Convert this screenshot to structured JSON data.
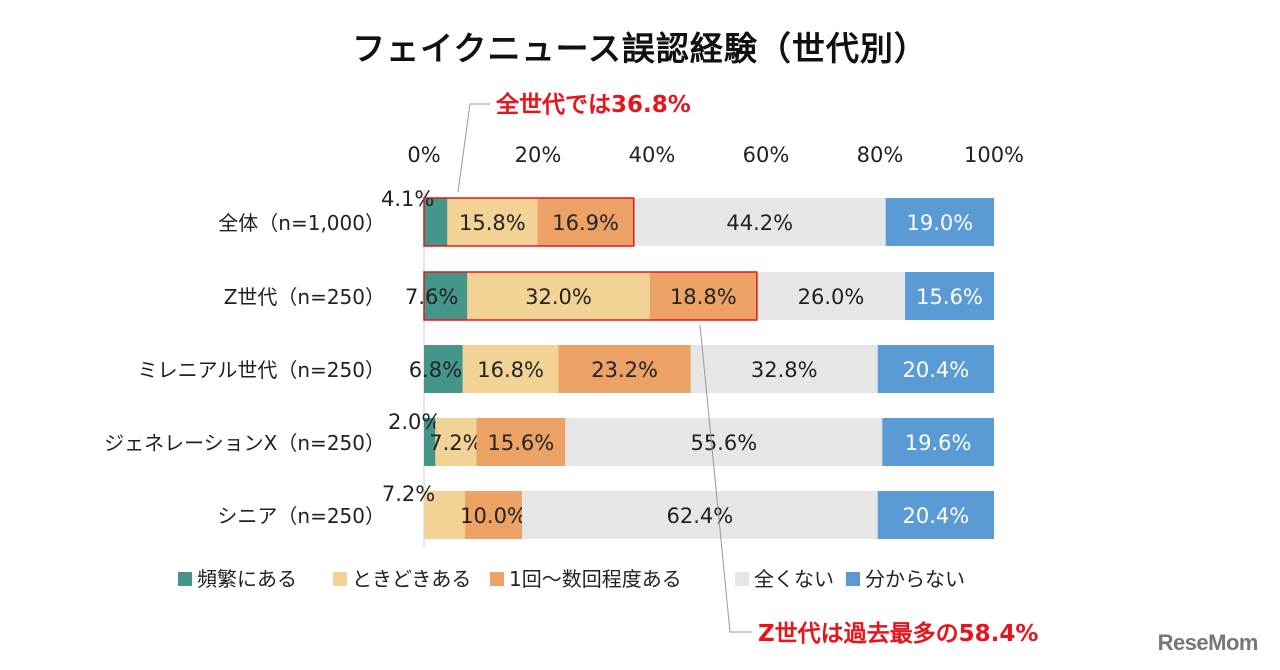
{
  "chart_data": {
    "type": "bar",
    "orientation": "horizontal",
    "stacked": true,
    "title": "フェイクニュース誤認経験（世代別）",
    "categories": [
      "全体（n=1,000）",
      "Z世代（n=250）",
      "ミレニアル世代（n=250）",
      "ジェネレーションX（n=250）",
      "シニア（n=250）"
    ],
    "series": [
      {
        "name": "頻繁にある",
        "color": "#45968a",
        "values": [
          4.1,
          7.6,
          6.8,
          2.0,
          0
        ]
      },
      {
        "name": "ときどきある",
        "color": "#f3d296",
        "values": [
          15.8,
          32.0,
          16.8,
          7.2,
          7.2
        ]
      },
      {
        "name": "1回～数回程度ある",
        "color": "#eba264",
        "values": [
          16.9,
          18.8,
          23.2,
          15.6,
          10.0
        ]
      },
      {
        "name": "全くない",
        "color": "#e6e6e6",
        "values": [
          44.2,
          26.0,
          32.8,
          55.6,
          62.4
        ]
      },
      {
        "name": "分からない",
        "color": "#5b9bd5",
        "values": [
          19.0,
          15.6,
          20.4,
          19.6,
          20.4
        ]
      }
    ],
    "xticks": [
      "0%",
      "20%",
      "40%",
      "60%",
      "80%",
      "100%"
    ],
    "xlim": [
      0,
      100
    ],
    "legend": "bottom",
    "grid": false,
    "annotations": [
      {
        "text": "全世代では36.8%",
        "category_index": 0,
        "value": 36.8,
        "color": "#e8141c"
      },
      {
        "text": "Z世代は過去最多の58.4%",
        "category_index": 1,
        "value": 58.4,
        "color": "#e8141c"
      }
    ]
  },
  "watermark": "ReseMom"
}
